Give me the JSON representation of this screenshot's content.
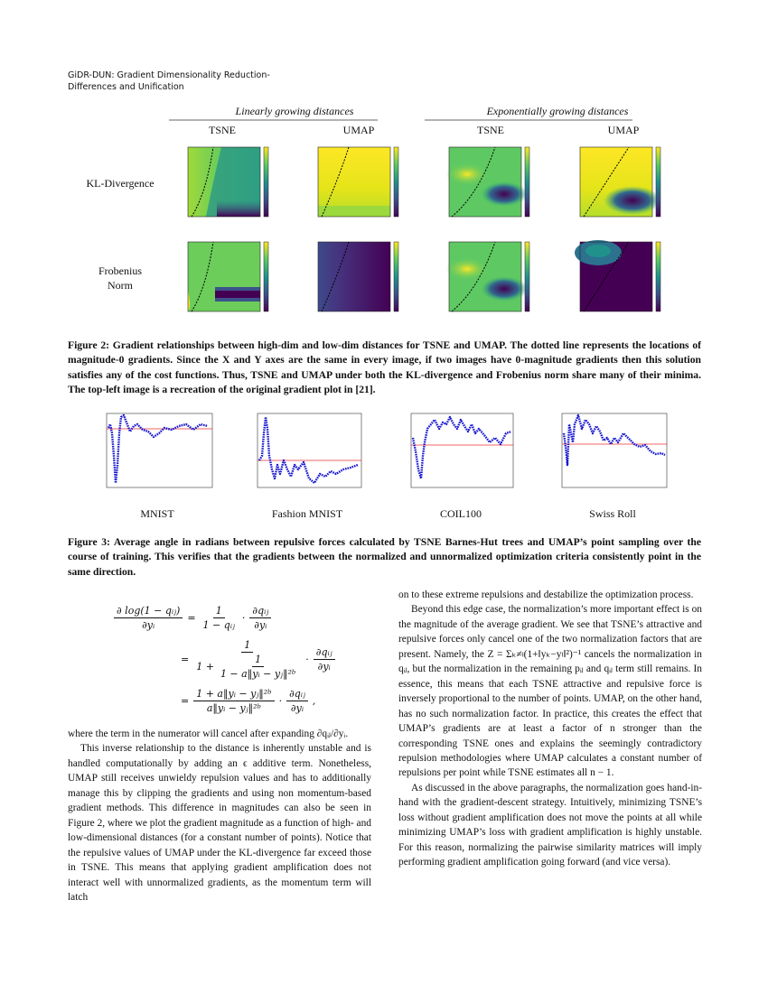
{
  "header": {
    "lines": [
      "GiDR-DUN: Gradient Dimensionality Reduction-",
      "Differences and Unification"
    ]
  },
  "figure2": {
    "groups": [
      "Linearly growing distances",
      "Exponentially growing distances"
    ],
    "columns": [
      "TSNE",
      "UMAP",
      "TSNE",
      "UMAP"
    ],
    "rows": [
      "KL-Divergence",
      "Frobenius Norm"
    ],
    "caption": "Figure 2: Gradient relationships between high-dim and low-dim distances for TSNE and UMAP. The dotted line represents the locations of magnitude-0 gradients. Since the X and Y axes are the same in every image, if two images have 0-magnitude gradients then this solution satisfies any of the cost functions. Thus, TSNE and UMAP under both the KL-divergence and Frobenius norm share many of their minima. The top-left image is a recreation of the original gradient plot in [21]."
  },
  "figure3": {
    "panels": [
      "MNIST",
      "Fashion MNIST",
      "COIL100",
      "Swiss Roll"
    ],
    "caption": "Figure 3: Average angle in radians between repulsive forces calculated by TSNE Barnes-Hut trees and UMAP’s point sampling over the course of training. This verifies that the gradients between the normalized and unnormalized optimization criteria consistently point in the same direction."
  },
  "equation": {
    "lhs": {
      "num": "∂ log(1 − qᵢⱼ)",
      "den": "∂yᵢ"
    },
    "eq": "=",
    "dot": "·",
    "dq": {
      "num": "∂qᵢⱼ",
      "den": "∂yᵢ"
    },
    "row1": {
      "num": "1",
      "den": "1 − qᵢⱼ"
    },
    "row2": {
      "num": "1",
      "den_lead": "1 +",
      "inner_num": "1",
      "inner_den": "1 − a‖yᵢ − yⱼ‖²ᵇ"
    },
    "row3": {
      "num": "1 + a‖yᵢ − yⱼ‖²ᵇ",
      "den": "a‖yᵢ − yⱼ‖²ᵇ",
      "end": ","
    }
  },
  "left_column": [
    "where the term in the numerator will cancel after expanding ∂qᵢⱼ/∂yᵢ.",
    "This inverse relationship to the distance is inherently unstable and is handled computationally by adding an ϵ additive term. Nonetheless, UMAP still receives unwieldy repulsion values and has to additionally manage this by clipping the gradients and using non momentum-based gradient methods. This difference in magnitudes can also be seen in Figure 2, where we plot the gradient magnitude as a function of high- and low-dimensional distances (for a constant number of points). Notice that the repulsive values of UMAP under the KL-divergence far exceed those in TSNE. This means that applying gradient amplification does not interact well with unnormalized gradients, as the momentum term will latch"
  ],
  "right_column": [
    "on to these extreme repulsions and destabilize the optimization process.",
    "Beyond this edge case, the normalization’s more important effect is on the magnitude of the average gradient. We see that TSNE’s attractive and repulsive forces only cancel one of the two normalization factors that are present. Namely, the Z = Σₖ≠ₗ(1+‖yₖ−yₗ‖²)⁻¹ cancels the normalization in qᵢⱼ, but the normalization in the remaining pᵢⱼ and qᵢⱼ term still remains. In essence, this means that each TSNE attractive and repulsive force is inversely proportional to the number of points. UMAP, on the other hand, has no such normalization factor. In practice, this creates the effect that UMAP’s gradients are at least a factor of n stronger than the corresponding TSNE ones and explains the seemingly contradictory repulsion methodologies where UMAP calculates a constant number of repulsions per point while TSNE estimates all n − 1.",
    "As discussed in the above paragraphs, the normalization goes hand-in-hand with the gradient-descent strategy. Intuitively, minimizing TSNE’s loss without gradient amplification does not move the points at all while minimizing UMAP’s loss with gradient amplification is highly unstable. For this reason, normalizing the pairwise similarity matrices will imply performing gradient amplification going forward (and vice versa)."
  ]
}
